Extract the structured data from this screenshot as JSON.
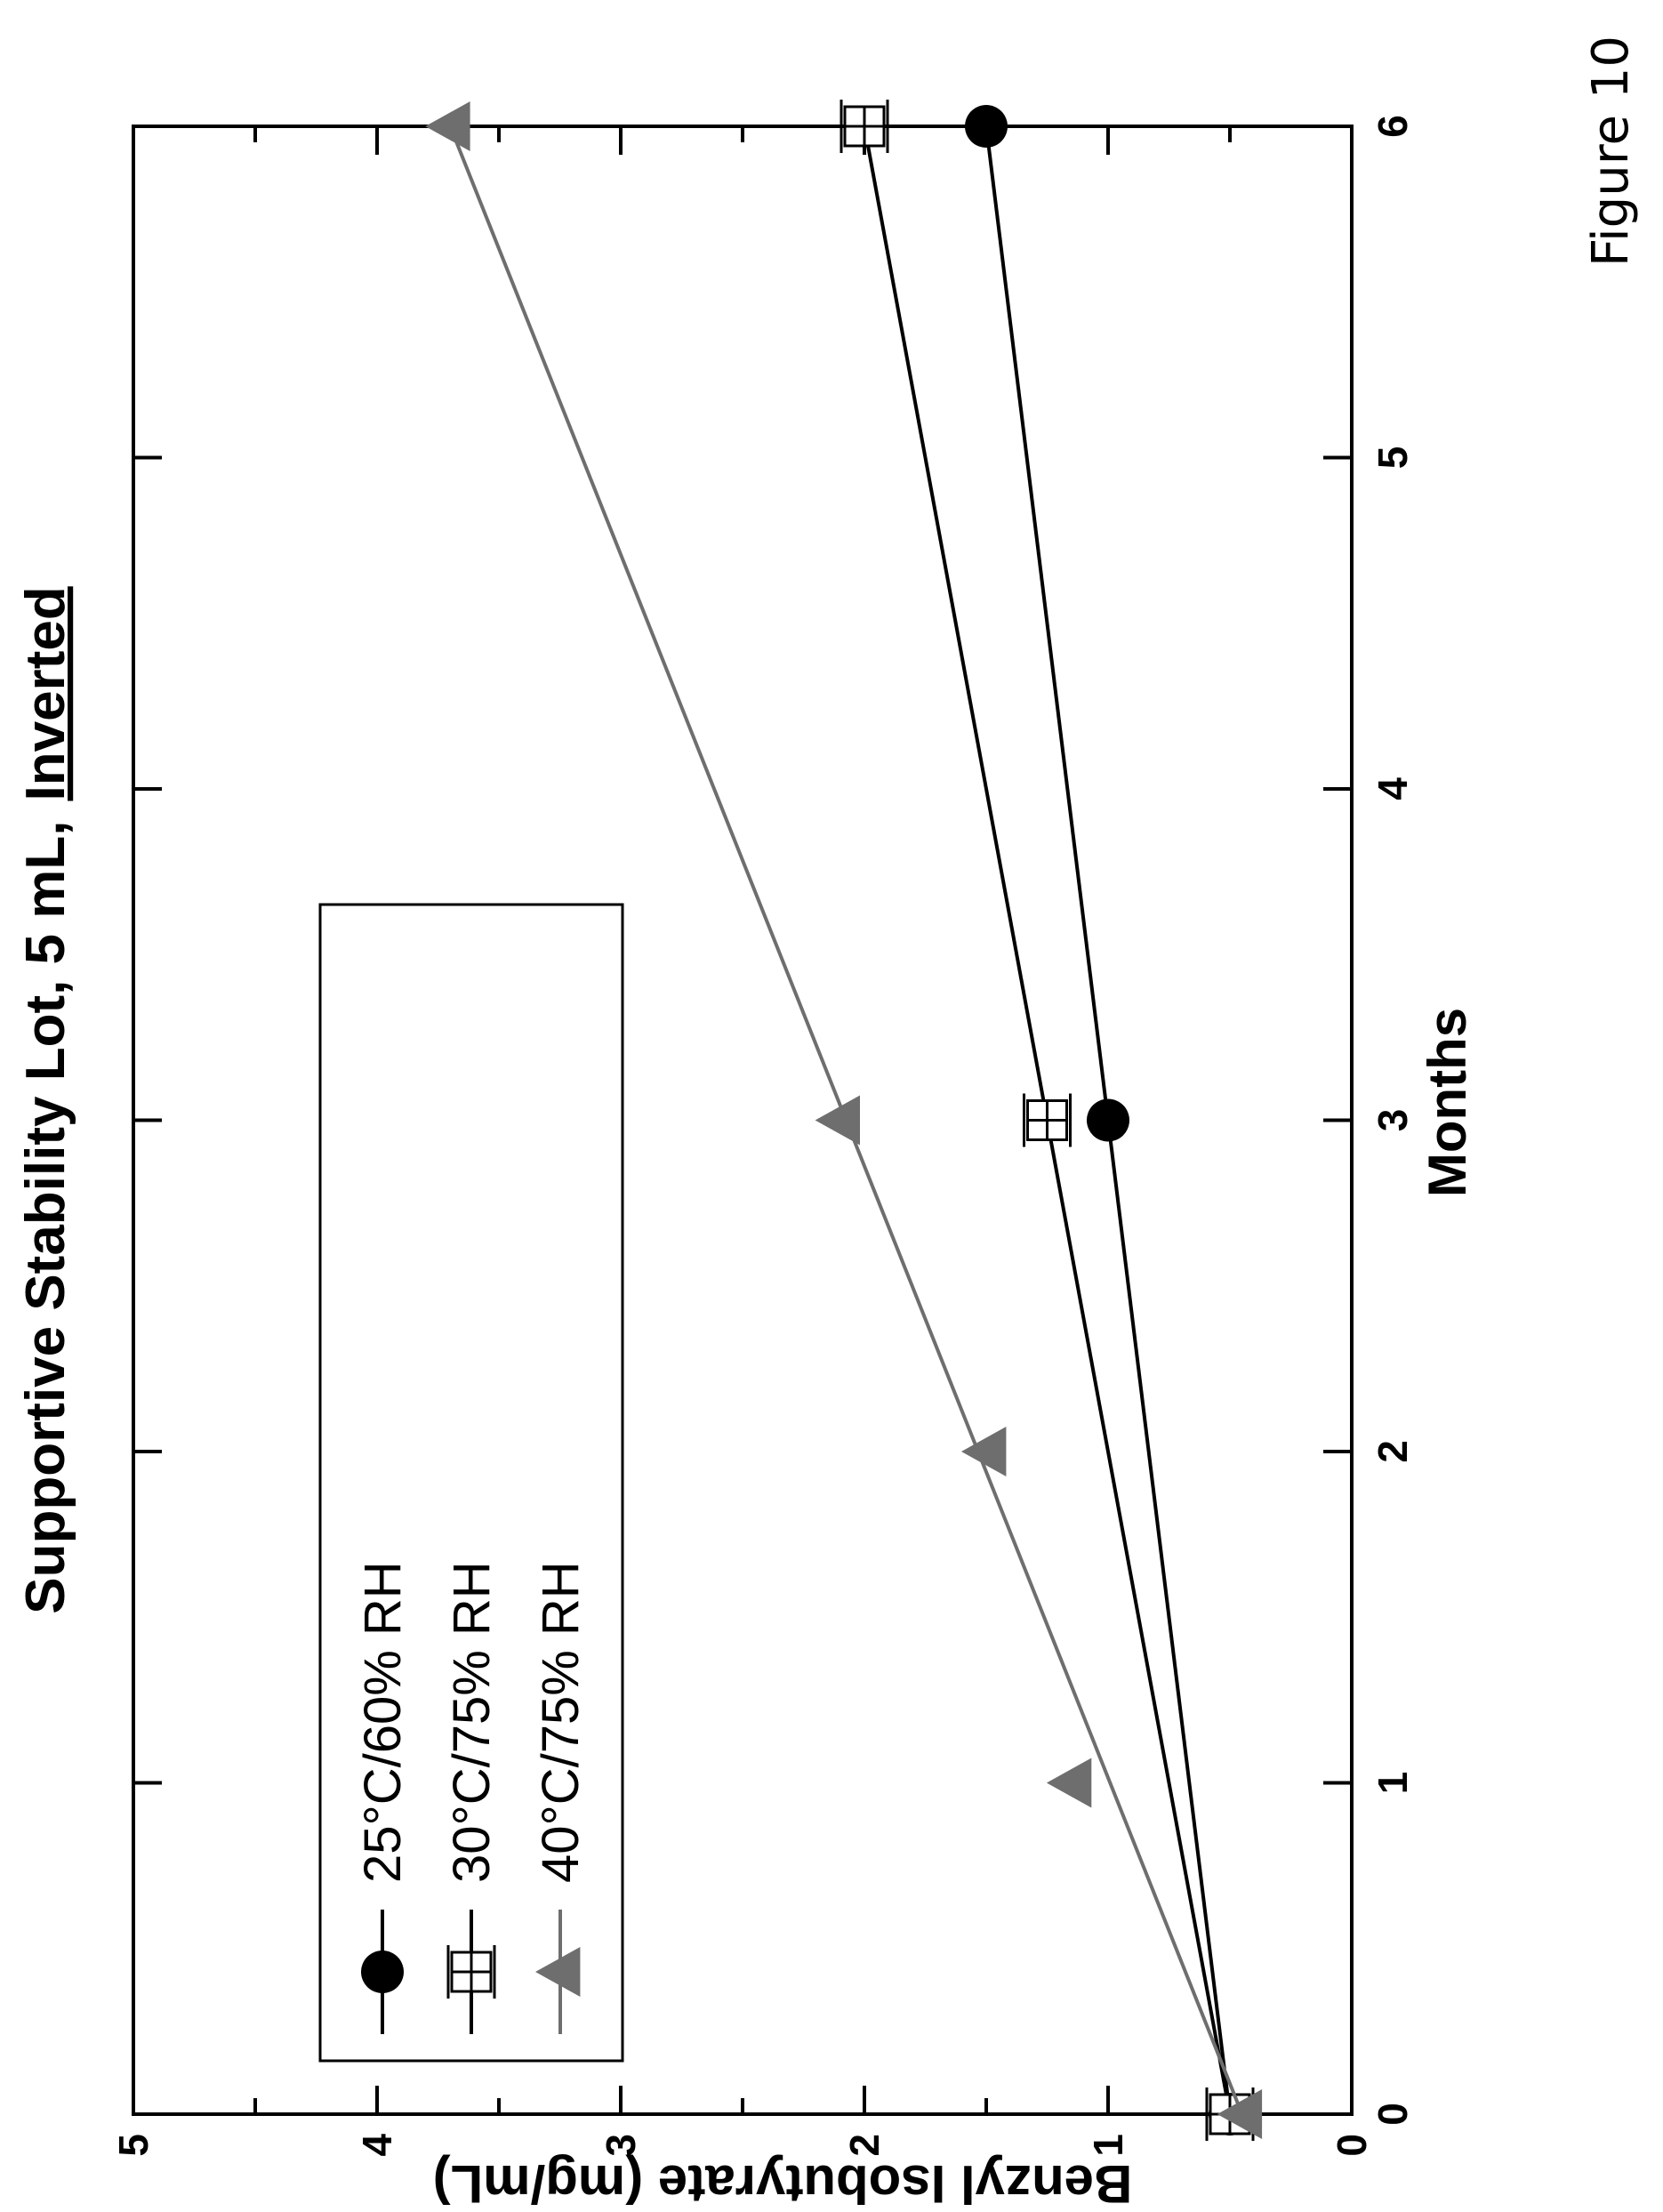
{
  "figure_label": "Figure 10",
  "chart_data": {
    "type": "line",
    "title": "Supportive Stability Lot, 5 mL,",
    "title_emphasis": "Inverted",
    "xlabel": "Months",
    "ylabel": "Benzyl Isobutyrate (mg/mL)",
    "xlim": [
      0,
      6
    ],
    "ylim": [
      0,
      5
    ],
    "x_ticks": [
      "0",
      "1",
      "2",
      "3",
      "4",
      "5",
      "6"
    ],
    "y_ticks": [
      "0",
      "1",
      "2",
      "3",
      "4",
      "5"
    ],
    "grid": false,
    "legend_position": "top-left",
    "series": [
      {
        "name": "25°C/60% RH",
        "marker": "circle",
        "color": "#000000",
        "x": [
          0,
          3,
          6
        ],
        "y": [
          0.5,
          1.0,
          1.5
        ]
      },
      {
        "name": "30°C/75% RH",
        "marker": "square-cross",
        "color": "#000000",
        "x": [
          0,
          3,
          6
        ],
        "y": [
          0.5,
          1.25,
          2.0
        ]
      },
      {
        "name": "40°C/75% RH",
        "marker": "triangle",
        "color": "#6e6e6e",
        "x": [
          0,
          1,
          2,
          3,
          6
        ],
        "y": [
          0.45,
          1.15,
          1.5,
          2.1,
          3.7
        ]
      }
    ]
  }
}
